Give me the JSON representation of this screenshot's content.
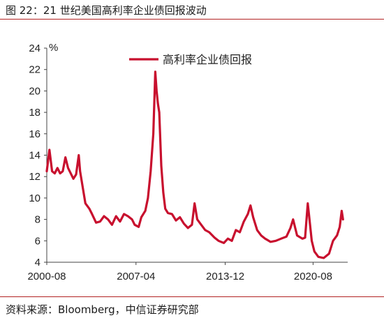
{
  "figure": {
    "title": "图 22：21 世纪美国高利率企业债回报波动",
    "source": "资料来源：Bloomberg，中信证券研究部"
  },
  "chart_data": {
    "type": "line",
    "title": "",
    "xlabel": "",
    "ylabel": "%",
    "ylim": [
      4,
      24
    ],
    "yticks": [
      "4",
      "6",
      "8",
      "10",
      "12",
      "14",
      "16",
      "18",
      "20",
      "22",
      "24"
    ],
    "xticks": [
      "2000-08",
      "2007-04",
      "2013-12",
      "2020-08"
    ],
    "grid": false,
    "legend": "top-center",
    "color": "#c8102e",
    "series": [
      {
        "name": "高利率企业债回报",
        "x": [
          2000.6,
          2000.8,
          2000.9,
          2001.0,
          2001.2,
          2001.4,
          2001.6,
          2001.8,
          2002.0,
          2002.2,
          2002.4,
          2002.6,
          2002.8,
          2003.0,
          2003.1,
          2003.3,
          2003.5,
          2003.8,
          2004.0,
          2004.3,
          2004.6,
          2004.9,
          2005.2,
          2005.5,
          2005.8,
          2006.1,
          2006.4,
          2006.7,
          2007.0,
          2007.2,
          2007.5,
          2007.7,
          2008.0,
          2008.2,
          2008.4,
          2008.6,
          2008.75,
          2008.85,
          2008.95,
          2009.05,
          2009.2,
          2009.35,
          2009.5,
          2009.7,
          2010.0,
          2010.3,
          2010.6,
          2010.9,
          2011.2,
          2011.5,
          2011.7,
          2011.9,
          2012.2,
          2012.5,
          2012.8,
          2013.2,
          2013.5,
          2013.9,
          2014.2,
          2014.5,
          2014.8,
          2015.1,
          2015.4,
          2015.7,
          2015.9,
          2016.1,
          2016.4,
          2016.7,
          2017.0,
          2017.4,
          2017.8,
          2018.2,
          2018.6,
          2018.9,
          2019.1,
          2019.4,
          2019.8,
          2020.0,
          2020.2,
          2020.35,
          2020.5,
          2020.7,
          2021.0,
          2021.4,
          2021.8,
          2022.1,
          2022.4,
          2022.6,
          2022.75,
          2022.85
        ],
        "values": [
          12.5,
          14.5,
          13.5,
          12.5,
          12.3,
          12.8,
          12.3,
          12.5,
          13.8,
          12.8,
          12.3,
          11.8,
          12.2,
          14.0,
          12.5,
          11.0,
          9.5,
          9.0,
          8.5,
          7.7,
          7.8,
          8.3,
          8.0,
          7.5,
          8.3,
          7.8,
          8.5,
          8.3,
          8.0,
          7.5,
          7.3,
          8.2,
          8.8,
          10.0,
          12.5,
          16.0,
          21.8,
          20.0,
          18.8,
          18.0,
          13.0,
          10.5,
          9.0,
          8.6,
          8.5,
          7.9,
          8.2,
          7.6,
          7.2,
          7.5,
          9.5,
          8.0,
          7.5,
          7.0,
          6.8,
          6.3,
          6.0,
          5.8,
          6.2,
          6.0,
          7.0,
          6.8,
          7.8,
          8.5,
          9.3,
          8.2,
          7.0,
          6.5,
          6.2,
          5.9,
          6.0,
          6.2,
          6.4,
          7.2,
          8.0,
          6.5,
          6.2,
          6.3,
          9.5,
          7.8,
          6.0,
          5.0,
          4.5,
          4.4,
          4.8,
          6.0,
          6.5,
          7.3,
          8.8,
          8.0
        ]
      }
    ]
  }
}
